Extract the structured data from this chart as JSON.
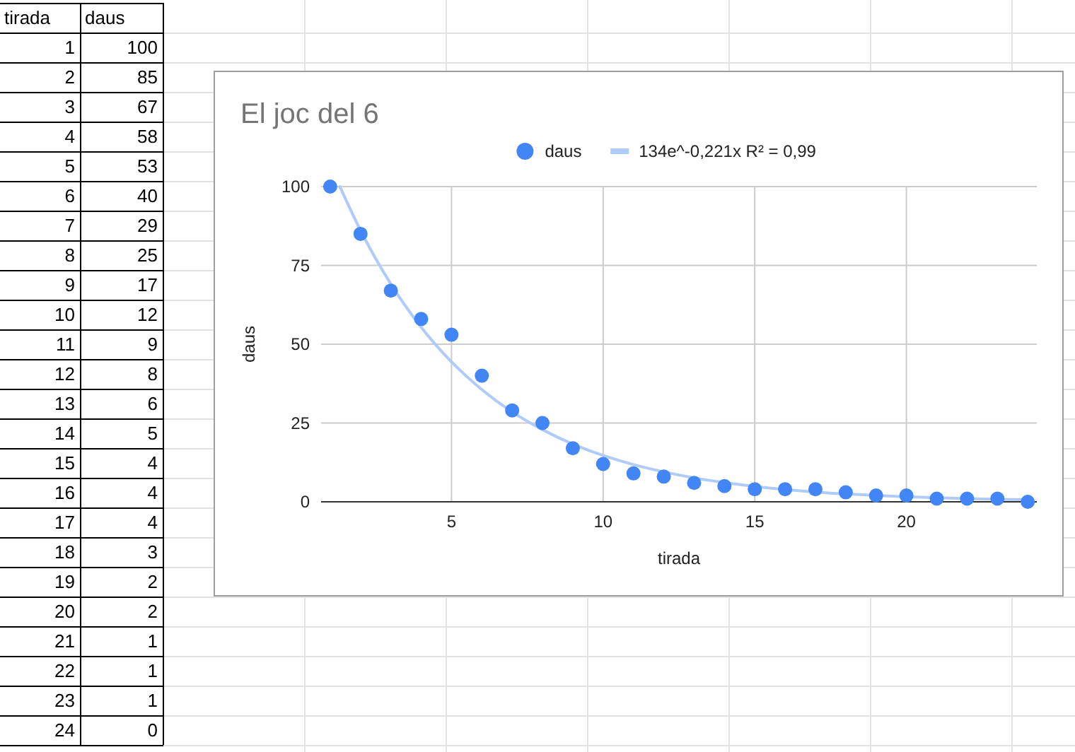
{
  "chart_data": {
    "type": "scatter",
    "title": "El joc del 6",
    "xlabel": "tirada",
    "ylabel": "daus",
    "x": [
      1,
      2,
      3,
      4,
      5,
      6,
      7,
      8,
      9,
      10,
      11,
      12,
      13,
      14,
      15,
      16,
      17,
      18,
      19,
      20,
      21,
      22,
      23,
      24
    ],
    "series": [
      {
        "name": "daus",
        "type": "scatter",
        "color": "#4285f4",
        "values": [
          100,
          85,
          67,
          58,
          53,
          40,
          29,
          25,
          17,
          12,
          9,
          8,
          6,
          5,
          4,
          4,
          4,
          3,
          2,
          2,
          1,
          1,
          1,
          0
        ]
      },
      {
        "name": "134e^-0,221x R² = 0,99",
        "type": "line",
        "marker": "none",
        "color": "#aecbfa",
        "x": [
          1.32,
          2,
          3,
          4,
          5,
          6,
          7,
          8,
          9,
          10,
          11,
          12,
          13,
          14,
          15,
          16,
          17,
          18,
          19,
          20,
          21,
          22,
          23,
          24
        ],
        "values": [
          100,
          86.1,
          69.1,
          55.4,
          44.4,
          35.6,
          28.5,
          22.9,
          18.3,
          14.7,
          11.8,
          9.5,
          7.6,
          6.1,
          4.9,
          3.9,
          3.1,
          2.5,
          2,
          1.6,
          1.3,
          1,
          0.8,
          0.7
        ]
      }
    ],
    "xlim": [
      0.7,
      24.3
    ],
    "xticks": [
      5,
      10,
      15,
      20
    ],
    "ylim": [
      0,
      100
    ],
    "yticks": [
      0,
      25,
      50,
      75,
      100
    ],
    "grid": true,
    "legend": "top",
    "marker": "circle",
    "annotations": [
      "tirada",
      "daus",
      "1",
      "100",
      "2",
      "85",
      "3",
      "67",
      "4",
      "58",
      "5",
      "53",
      "6",
      "40",
      "7",
      "29",
      "8",
      "25",
      "9",
      "17",
      "10",
      "12",
      "11",
      "9",
      "12",
      "8",
      "13",
      "6",
      "14",
      "5",
      "15",
      "4",
      "16",
      "4",
      "17",
      "4",
      "18",
      "3",
      "19",
      "2",
      "20",
      "2",
      "21",
      "1",
      "22",
      "1",
      "23",
      "1",
      "24",
      "0"
    ]
  }
}
